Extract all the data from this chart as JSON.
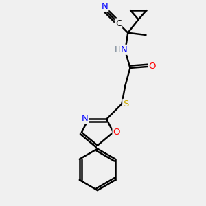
{
  "bg_color": "#f0f0f0",
  "atom_colors": {
    "C": "#000000",
    "N": "#0000ff",
    "O": "#ff0000",
    "S": "#ccaa00",
    "H": "#708090"
  },
  "bond_color": "#000000",
  "bond_width": 1.8,
  "figsize": [
    3.0,
    3.0
  ],
  "dpi": 100,
  "xlim": [
    3.2,
    8.2
  ],
  "ylim": [
    0.3,
    7.5
  ]
}
